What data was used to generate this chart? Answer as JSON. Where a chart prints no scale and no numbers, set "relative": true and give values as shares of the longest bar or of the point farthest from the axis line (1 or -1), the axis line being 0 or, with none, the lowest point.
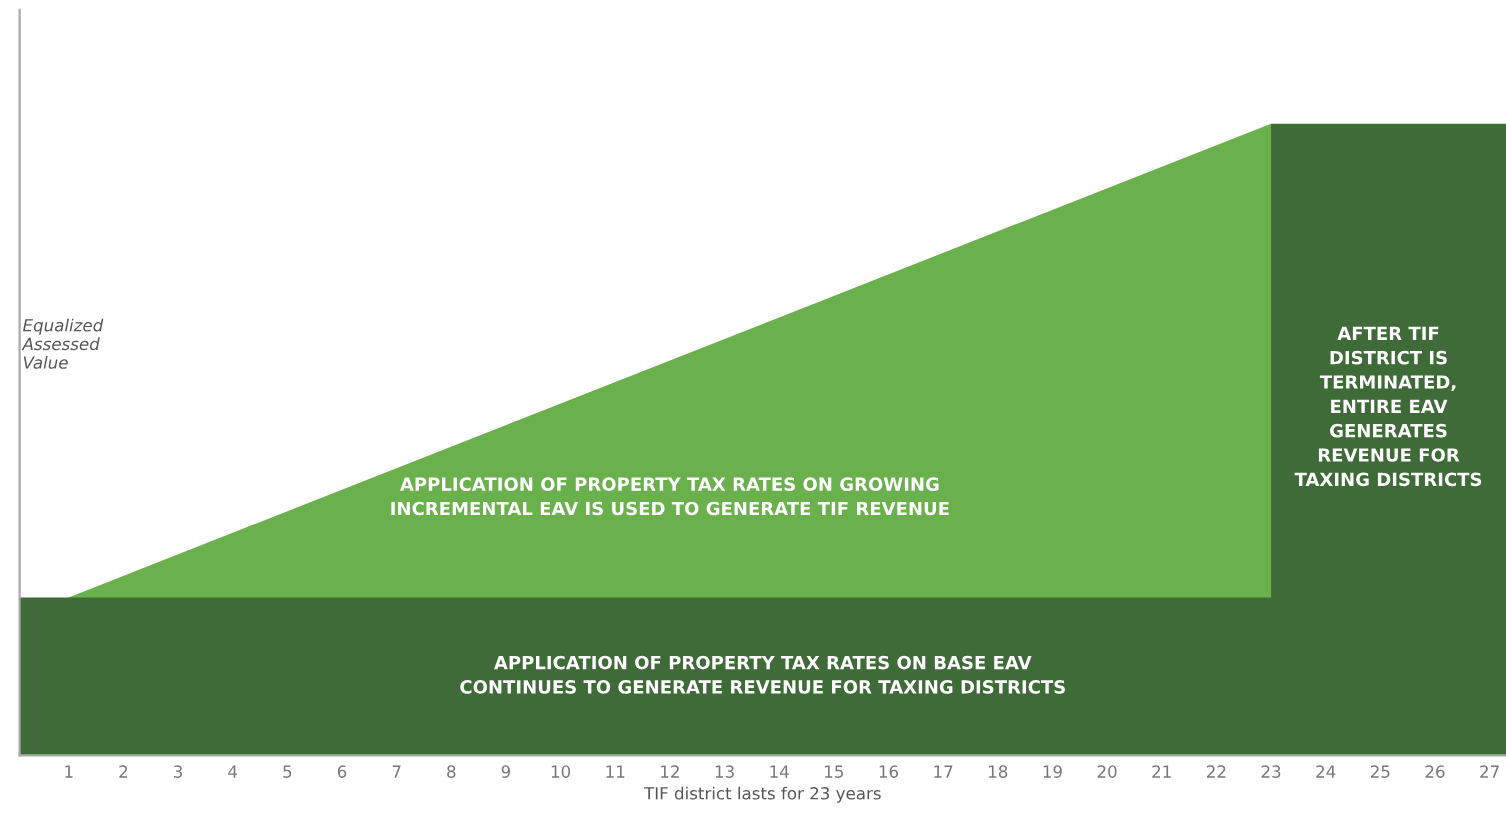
{
  "chart_data": {
    "type": "area",
    "relative": true,
    "xlabel": "TIF district lasts for 23 years",
    "ylabel": "Equalized\nAssessed\nValue",
    "xlim": [
      0.1,
      27.3
    ],
    "xticks": [
      1,
      2,
      3,
      4,
      5,
      6,
      7,
      8,
      9,
      10,
      11,
      12,
      13,
      14,
      15,
      16,
      17,
      18,
      19,
      20,
      21,
      22,
      23,
      24,
      25,
      26,
      27
    ],
    "series": [
      {
        "color": "#6ab04c",
        "x": [
          1,
          23
        ],
        "values": [
          0.25,
          1
        ]
      },
      {
        "color": "#3e6b37",
        "x": [
          23,
          27.3
        ],
        "values": [
          1,
          1
        ]
      },
      {
        "color": "#3e6b37",
        "x": [
          0.1,
          27.3
        ],
        "values": [
          0.25,
          0.25
        ]
      }
    ],
    "annotations": [
      "APPLICATION OF PROPERTY TAX RATES ON GROWING\nINCREMENTAL EAV IS USED TO GENERATE TIF REVENUE",
      "AFTER TIF\nDISTRICT IS\nTERMINATED,\nENTIRE EAV\nGENERATES\nREVENUE FOR\nTAXING DISTRICTS",
      "APPLICATION OF PROPERTY TAX RATES ON BASE EAV\nCONTINUES TO GENERATE REVENUE FOR TAXING DISTRICTS"
    ],
    "grid": false,
    "legend": false
  }
}
